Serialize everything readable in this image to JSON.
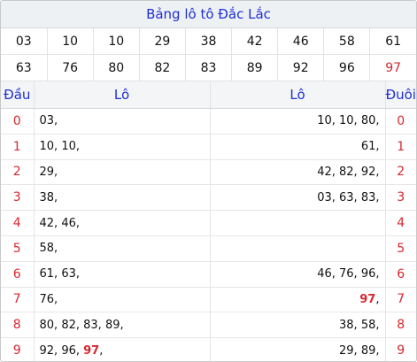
{
  "title": "Bảng lô tô Đắc Lắc",
  "numbers_row1": [
    "03",
    "10",
    "10",
    "29",
    "38",
    "42",
    "46",
    "58",
    "61"
  ],
  "numbers_row2": [
    "63",
    "76",
    "80",
    "82",
    "83",
    "89",
    "92",
    "96",
    "97"
  ],
  "highlight_number": "97",
  "headers": {
    "dau": "Đầu",
    "lo_left": "Lô",
    "lo_right": "Lô",
    "duoi": "Đuôi"
  },
  "rows": [
    {
      "digit": "0",
      "dau": [
        "03"
      ],
      "duoi": [
        "10",
        "10",
        "80"
      ]
    },
    {
      "digit": "1",
      "dau": [
        "10",
        "10"
      ],
      "duoi": [
        "61"
      ]
    },
    {
      "digit": "2",
      "dau": [
        "29"
      ],
      "duoi": [
        "42",
        "82",
        "92"
      ]
    },
    {
      "digit": "3",
      "dau": [
        "38"
      ],
      "duoi": [
        "03",
        "63",
        "83"
      ]
    },
    {
      "digit": "4",
      "dau": [
        "42",
        "46"
      ],
      "duoi": []
    },
    {
      "digit": "5",
      "dau": [
        "58"
      ],
      "duoi": []
    },
    {
      "digit": "6",
      "dau": [
        "61",
        "63"
      ],
      "duoi": [
        "46",
        "76",
        "96"
      ]
    },
    {
      "digit": "7",
      "dau": [
        "76"
      ],
      "duoi": [
        "97"
      ]
    },
    {
      "digit": "8",
      "dau": [
        "80",
        "82",
        "83",
        "89"
      ],
      "duoi": [
        "38",
        "58"
      ]
    },
    {
      "digit": "9",
      "dau": [
        "92",
        "96",
        "97"
      ],
      "duoi": [
        "29",
        "89"
      ]
    }
  ],
  "colors": {
    "accent_blue": "#1f2fd6",
    "highlight_red": "#d8282f"
  }
}
